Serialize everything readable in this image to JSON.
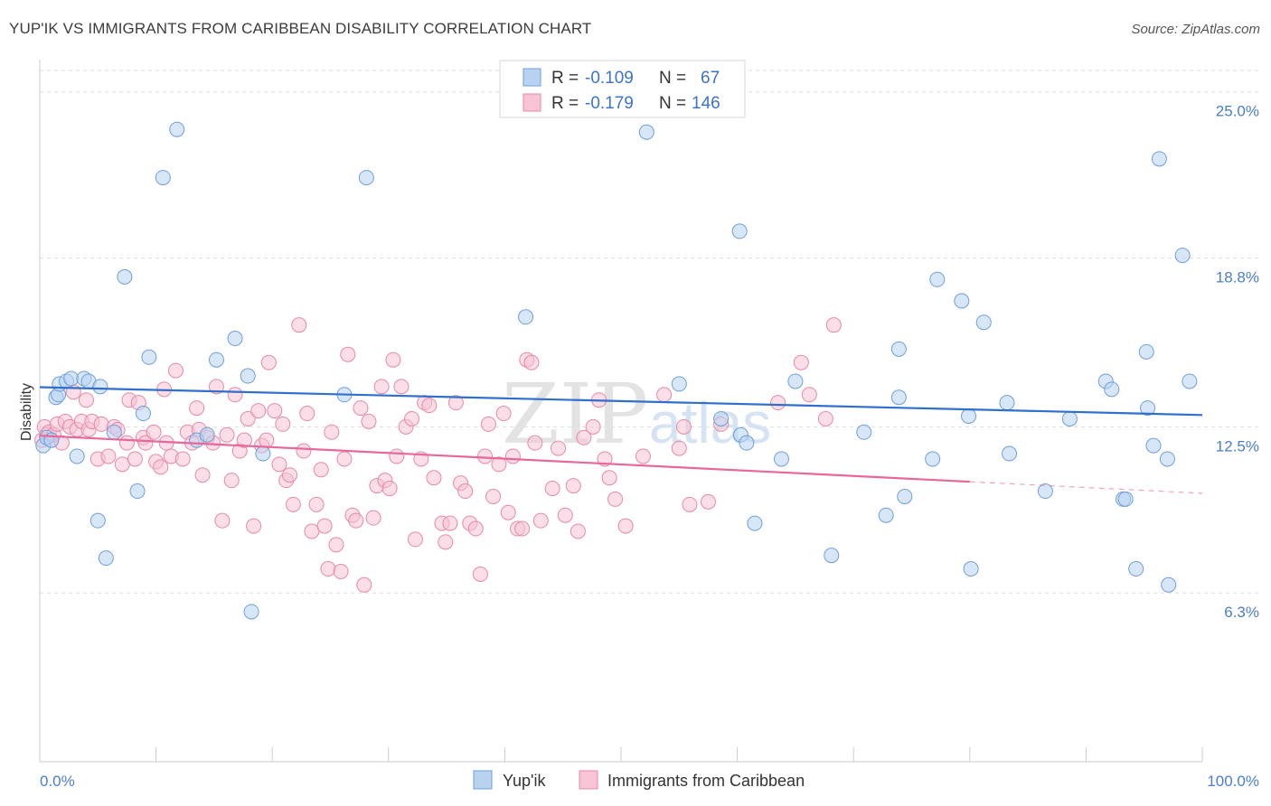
{
  "header": {
    "title": "YUP'IK VS IMMIGRANTS FROM CARIBBEAN DISABILITY CORRELATION CHART",
    "source": "Source: ZipAtlas.com"
  },
  "watermark": {
    "zip": "ZIP",
    "atlas": "atlas"
  },
  "legend": {
    "series1": {
      "r_label": "R = ",
      "r_value": "-0.109",
      "n_label": "N = ",
      "n_value": "67"
    },
    "series2": {
      "r_label": "R = ",
      "r_value": "-0.179",
      "n_label": "N = ",
      "n_value": "146"
    }
  },
  "colors": {
    "blue_fill": "#b8d3f2",
    "blue_stroke": "#6f9fd8",
    "blue_line": "#2f6fce",
    "pink_fill": "#f8c3d4",
    "pink_stroke": "#e58aa8",
    "pink_line": "#e8689a",
    "tick_text": "#4a7ecf",
    "grid": "#dddddd"
  },
  "chart_data": {
    "type": "scatter",
    "xlabel": "",
    "ylabel": "Disability",
    "xlim": [
      0,
      100
    ],
    "ylim": [
      0,
      25.8
    ],
    "x_tick_labels": [
      "0.0%",
      "100.0%"
    ],
    "y_ticks": [
      6.3,
      12.5,
      18.8,
      25.0
    ],
    "y_tick_labels": [
      "6.3%",
      "12.5%",
      "18.8%",
      "25.0%"
    ],
    "grid": true,
    "legend_position": "top-center",
    "series": [
      {
        "name": "Yup'ik",
        "color": "#b8d3f2",
        "trend": {
          "x": [
            0,
            100
          ],
          "y": [
            13.98,
            12.94
          ]
        },
        "points": [
          [
            0.3,
            11.8
          ],
          [
            0.6,
            12.1
          ],
          [
            1.0,
            12.0
          ],
          [
            1.4,
            13.6
          ],
          [
            1.6,
            13.7
          ],
          [
            1.7,
            14.1
          ],
          [
            2.3,
            14.2
          ],
          [
            2.7,
            14.3
          ],
          [
            3.2,
            11.4
          ],
          [
            3.8,
            14.3
          ],
          [
            4.2,
            14.2
          ],
          [
            5.2,
            14.0
          ],
          [
            5.0,
            9.0
          ],
          [
            5.7,
            7.6
          ],
          [
            6.4,
            12.3
          ],
          [
            7.3,
            18.1
          ],
          [
            8.4,
            10.1
          ],
          [
            8.9,
            13.0
          ],
          [
            9.4,
            15.1
          ],
          [
            10.6,
            21.8
          ],
          [
            11.8,
            23.6
          ],
          [
            13.5,
            12.0
          ],
          [
            14.4,
            12.2
          ],
          [
            15.2,
            15.0
          ],
          [
            16.8,
            15.8
          ],
          [
            17.9,
            14.4
          ],
          [
            18.2,
            5.6
          ],
          [
            19.2,
            11.5
          ],
          [
            26.2,
            13.7
          ],
          [
            28.1,
            21.8
          ],
          [
            41.8,
            16.6
          ],
          [
            52.2,
            23.5
          ],
          [
            55.0,
            14.1
          ],
          [
            58.6,
            12.8
          ],
          [
            60.3,
            12.2
          ],
          [
            60.8,
            11.9
          ],
          [
            60.2,
            19.8
          ],
          [
            61.5,
            8.9
          ],
          [
            63.8,
            11.3
          ],
          [
            65.0,
            14.2
          ],
          [
            68.1,
            7.7
          ],
          [
            70.9,
            12.3
          ],
          [
            72.8,
            9.2
          ],
          [
            73.9,
            13.6
          ],
          [
            73.9,
            15.4
          ],
          [
            74.4,
            9.9
          ],
          [
            76.8,
            11.3
          ],
          [
            77.2,
            18.0
          ],
          [
            79.3,
            17.2
          ],
          [
            79.9,
            12.9
          ],
          [
            80.1,
            7.2
          ],
          [
            81.2,
            16.4
          ],
          [
            83.2,
            13.4
          ],
          [
            83.4,
            11.5
          ],
          [
            86.5,
            10.1
          ],
          [
            88.6,
            12.8
          ],
          [
            91.7,
            14.2
          ],
          [
            92.2,
            13.9
          ],
          [
            93.2,
            9.8
          ],
          [
            93.4,
            9.8
          ],
          [
            94.3,
            7.2
          ],
          [
            95.2,
            15.3
          ],
          [
            95.3,
            13.2
          ],
          [
            95.8,
            11.8
          ],
          [
            96.3,
            22.5
          ],
          [
            97.0,
            11.3
          ],
          [
            97.1,
            6.6
          ],
          [
            98.3,
            18.9
          ],
          [
            98.9,
            14.2
          ]
        ]
      },
      {
        "name": "Immigrants from Caribbean",
        "color": "#f8c3d4",
        "trend": {
          "x": [
            0,
            80
          ],
          "y": [
            12.17,
            10.45
          ]
        },
        "trend_dashed": {
          "x": [
            80,
            100
          ],
          "y": [
            10.45,
            10.02
          ]
        },
        "points": [
          [
            0.2,
            12.0
          ],
          [
            0.4,
            12.5
          ],
          [
            0.6,
            12.2
          ],
          [
            0.8,
            12.3
          ],
          [
            1.0,
            12.0
          ],
          [
            1.2,
            12.2
          ],
          [
            1.5,
            12.6
          ],
          [
            1.9,
            11.9
          ],
          [
            2.2,
            12.7
          ],
          [
            2.6,
            12.5
          ],
          [
            2.9,
            13.8
          ],
          [
            3.2,
            12.4
          ],
          [
            3.6,
            12.7
          ],
          [
            4.0,
            13.5
          ],
          [
            4.2,
            12.4
          ],
          [
            4.5,
            12.7
          ],
          [
            5.0,
            11.3
          ],
          [
            5.3,
            12.6
          ],
          [
            5.9,
            11.4
          ],
          [
            6.4,
            12.5
          ],
          [
            6.7,
            12.4
          ],
          [
            7.1,
            11.1
          ],
          [
            7.5,
            11.9
          ],
          [
            7.7,
            13.5
          ],
          [
            8.2,
            11.3
          ],
          [
            8.5,
            13.4
          ],
          [
            8.9,
            12.1
          ],
          [
            9.1,
            11.9
          ],
          [
            9.8,
            12.3
          ],
          [
            10.0,
            11.2
          ],
          [
            10.4,
            11.0
          ],
          [
            10.7,
            13.9
          ],
          [
            10.9,
            11.9
          ],
          [
            11.3,
            11.4
          ],
          [
            11.7,
            14.6
          ],
          [
            12.3,
            11.3
          ],
          [
            12.7,
            12.3
          ],
          [
            13.1,
            11.9
          ],
          [
            13.5,
            13.2
          ],
          [
            13.7,
            12.4
          ],
          [
            14.0,
            10.7
          ],
          [
            14.4,
            12.1
          ],
          [
            14.9,
            11.9
          ],
          [
            15.2,
            14.0
          ],
          [
            15.7,
            9.0
          ],
          [
            16.1,
            12.2
          ],
          [
            16.5,
            10.5
          ],
          [
            16.8,
            13.7
          ],
          [
            17.2,
            11.6
          ],
          [
            17.6,
            12.0
          ],
          [
            17.9,
            12.8
          ],
          [
            18.4,
            8.8
          ],
          [
            18.8,
            13.1
          ],
          [
            19.1,
            11.8
          ],
          [
            19.5,
            12.0
          ],
          [
            19.7,
            14.9
          ],
          [
            20.2,
            13.1
          ],
          [
            20.6,
            11.1
          ],
          [
            20.9,
            12.6
          ],
          [
            21.2,
            10.5
          ],
          [
            21.5,
            10.7
          ],
          [
            21.8,
            9.6
          ],
          [
            22.3,
            16.3
          ],
          [
            22.7,
            11.6
          ],
          [
            23.0,
            13.0
          ],
          [
            23.4,
            8.6
          ],
          [
            23.8,
            9.6
          ],
          [
            24.2,
            10.9
          ],
          [
            24.5,
            8.8
          ],
          [
            24.8,
            7.2
          ],
          [
            25.1,
            12.3
          ],
          [
            25.5,
            8.1
          ],
          [
            25.9,
            7.1
          ],
          [
            26.2,
            11.3
          ],
          [
            26.5,
            15.2
          ],
          [
            26.9,
            9.2
          ],
          [
            27.2,
            9.0
          ],
          [
            27.6,
            13.2
          ],
          [
            27.9,
            6.6
          ],
          [
            28.3,
            12.7
          ],
          [
            28.7,
            9.1
          ],
          [
            29.0,
            10.3
          ],
          [
            29.4,
            14.0
          ],
          [
            29.7,
            10.5
          ],
          [
            30.1,
            10.2
          ],
          [
            30.4,
            15.0
          ],
          [
            30.7,
            11.4
          ],
          [
            31.1,
            14.0
          ],
          [
            31.5,
            12.5
          ],
          [
            32.0,
            12.8
          ],
          [
            32.3,
            8.3
          ],
          [
            32.8,
            11.3
          ],
          [
            33.1,
            13.4
          ],
          [
            33.5,
            13.3
          ],
          [
            33.9,
            10.6
          ],
          [
            34.6,
            8.9
          ],
          [
            34.9,
            8.2
          ],
          [
            35.3,
            8.9
          ],
          [
            35.8,
            13.4
          ],
          [
            36.2,
            10.4
          ],
          [
            36.6,
            10.1
          ],
          [
            37.0,
            8.9
          ],
          [
            37.5,
            8.7
          ],
          [
            37.9,
            7.0
          ],
          [
            38.3,
            11.4
          ],
          [
            38.6,
            12.6
          ],
          [
            39.0,
            9.9
          ],
          [
            39.5,
            11.1
          ],
          [
            39.9,
            13.0
          ],
          [
            40.3,
            9.3
          ],
          [
            40.7,
            11.4
          ],
          [
            41.1,
            8.7
          ],
          [
            41.5,
            8.7
          ],
          [
            41.9,
            15.0
          ],
          [
            42.3,
            14.9
          ],
          [
            42.6,
            11.9
          ],
          [
            43.1,
            9.0
          ],
          [
            44.1,
            10.2
          ],
          [
            44.6,
            11.7
          ],
          [
            45.2,
            9.2
          ],
          [
            45.9,
            10.3
          ],
          [
            46.3,
            8.6
          ],
          [
            46.8,
            12.1
          ],
          [
            47.6,
            12.5
          ],
          [
            48.1,
            13.5
          ],
          [
            48.6,
            11.3
          ],
          [
            49.0,
            10.6
          ],
          [
            49.5,
            9.8
          ],
          [
            50.4,
            8.8
          ],
          [
            51.9,
            11.4
          ],
          [
            53.7,
            13.7
          ],
          [
            55.0,
            11.7
          ],
          [
            55.4,
            12.5
          ],
          [
            55.9,
            9.6
          ],
          [
            57.5,
            9.7
          ],
          [
            58.6,
            12.6
          ],
          [
            63.5,
            13.4
          ],
          [
            65.5,
            14.9
          ],
          [
            66.2,
            13.7
          ],
          [
            67.6,
            12.8
          ],
          [
            68.3,
            16.3
          ]
        ]
      }
    ]
  },
  "bottom_legend": {
    "item1": "Yup'ik",
    "item2": "Immigrants from Caribbean"
  }
}
